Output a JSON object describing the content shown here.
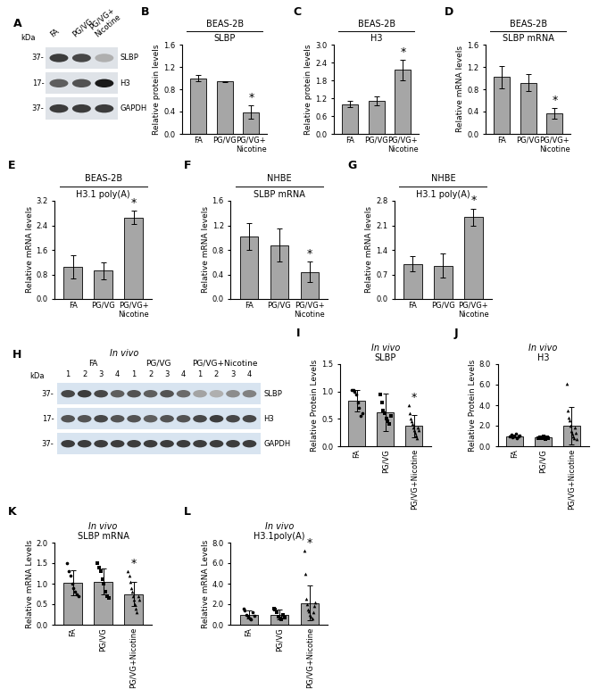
{
  "blots": [
    {
      "panel": "A",
      "kda_label": "kDa",
      "lanes": [
        "FA",
        "PG/VG",
        "PG/VG+\nNicotine"
      ],
      "rows": [
        {
          "name": "SLBP",
          "mw_label": "37-",
          "intensity": [
            0.85,
            0.8,
            0.35
          ]
        },
        {
          "name": "H3",
          "mw_label": "17-",
          "intensity": [
            0.7,
            0.75,
            1.0
          ]
        },
        {
          "name": "GAPDH",
          "mw_label": "37-",
          "intensity": [
            0.85,
            0.85,
            0.85
          ]
        }
      ]
    },
    {
      "panel": "H",
      "title": "In vivo",
      "kda_label": "kDa",
      "groups": [
        "FA",
        "PG/VG",
        "PG/VG+Nicotine"
      ],
      "lane_labels": [
        "1",
        "2",
        "3",
        "4"
      ],
      "rows": [
        {
          "name": "SLBP",
          "mw_label": "37-",
          "intensity": [
            0.8,
            0.85,
            0.8,
            0.7,
            0.75,
            0.7,
            0.75,
            0.65,
            0.4,
            0.35,
            0.5,
            0.55
          ]
        },
        {
          "name": "H3",
          "mw_label": "17-",
          "intensity": [
            0.75,
            0.75,
            0.8,
            0.75,
            0.75,
            0.7,
            0.75,
            0.75,
            0.8,
            0.85,
            0.8,
            0.8
          ]
        },
        {
          "name": "GAPDH",
          "mw_label": "37-",
          "intensity": [
            0.85,
            0.85,
            0.85,
            0.85,
            0.85,
            0.85,
            0.85,
            0.85,
            0.85,
            0.85,
            0.85,
            0.85
          ]
        }
      ]
    }
  ],
  "chart_data": [
    {
      "panel": "B",
      "type": "bar",
      "title": "BEAS-2B",
      "subtitle": "SLBP",
      "y_label": "Relative protein levels",
      "categories": [
        "FA",
        "PG/VG",
        "PG/VG+\nNicotine"
      ],
      "values": [
        1.0,
        0.94,
        0.39
      ],
      "errors": [
        0.05,
        0.01,
        0.12
      ],
      "color": "#a6a6a6",
      "ylim": [
        0.0,
        1.6
      ],
      "yticks": [
        0.0,
        0.4,
        0.8,
        1.2,
        1.6
      ],
      "annotations": [
        {
          "category": "PG/VG+\nNicotine",
          "text": "*"
        }
      ]
    },
    {
      "panel": "C",
      "type": "bar",
      "title": "BEAS-2B",
      "subtitle": "H3",
      "y_label": "Relative protein levels",
      "categories": [
        "FA",
        "PG/VG",
        "PG/VG+\nNicotine"
      ],
      "values": [
        1.0,
        1.1,
        2.15
      ],
      "errors": [
        0.1,
        0.15,
        0.35
      ],
      "color": "#a6a6a6",
      "ylim": [
        0.0,
        3.0
      ],
      "yticks": [
        0.0,
        0.6,
        1.2,
        1.8,
        2.4,
        3.0
      ],
      "annotations": [
        {
          "category": "PG/VG+\nNicotine",
          "text": "*"
        }
      ]
    },
    {
      "panel": "D",
      "type": "bar",
      "title": "BEAS-2B",
      "subtitle": "SLBP mRNA",
      "y_label": "Relative mRNA levels",
      "categories": [
        "FA",
        "PG/VG",
        "PG/VG+\nNicotine"
      ],
      "values": [
        1.02,
        0.92,
        0.37
      ],
      "errors": [
        0.2,
        0.15,
        0.1
      ],
      "color": "#a6a6a6",
      "ylim": [
        0.0,
        1.6
      ],
      "yticks": [
        0.0,
        0.4,
        0.8,
        1.2,
        1.6
      ],
      "annotations": [
        {
          "category": "PG/VG+\nNicotine",
          "text": "*"
        }
      ]
    },
    {
      "panel": "E",
      "type": "bar",
      "title": "BEAS-2B",
      "subtitle": "H3.1 poly(A)",
      "y_label": "Relative mRNA levels",
      "categories": [
        "FA",
        "PG/VG",
        "PG/VG+\nNicotine"
      ],
      "values": [
        1.05,
        0.92,
        2.65
      ],
      "errors": [
        0.38,
        0.28,
        0.22
      ],
      "color": "#a6a6a6",
      "ylim": [
        0.0,
        3.2
      ],
      "yticks": [
        0.0,
        0.8,
        1.6,
        2.4,
        3.2
      ],
      "annotations": [
        {
          "category": "PG/VG+\nNicotine",
          "text": "*"
        }
      ]
    },
    {
      "panel": "F",
      "type": "bar",
      "title": "NHBE",
      "subtitle": "SLBP mRNA",
      "y_label": "Relative mRNA levels",
      "categories": [
        "FA",
        "PG/VG",
        "PG/VG+\nNicotine"
      ],
      "values": [
        1.02,
        0.88,
        0.44
      ],
      "errors": [
        0.22,
        0.27,
        0.17
      ],
      "color": "#a6a6a6",
      "ylim": [
        0.0,
        1.6
      ],
      "yticks": [
        0.0,
        0.4,
        0.8,
        1.2,
        1.6
      ],
      "annotations": [
        {
          "category": "PG/VG+\nNicotine",
          "text": "*"
        }
      ]
    },
    {
      "panel": "G",
      "type": "bar",
      "title": "NHBE",
      "subtitle": "H3.1 poly(A)",
      "y_label": "Relative mRNA levels",
      "categories": [
        "FA",
        "PG/VG",
        "PG/VG+\nNicotine"
      ],
      "values": [
        1.0,
        0.95,
        2.33
      ],
      "errors": [
        0.22,
        0.35,
        0.25
      ],
      "color": "#a6a6a6",
      "ylim": [
        0.0,
        2.8
      ],
      "yticks": [
        0.0,
        0.7,
        1.4,
        2.1,
        2.8
      ],
      "annotations": [
        {
          "category": "PG/VG+\nNicotine",
          "text": "*"
        }
      ]
    },
    {
      "panel": "I",
      "type": "bar",
      "title": "In vivo",
      "subtitle": "SLBP",
      "y_label": "Relative Protein Levels",
      "categories": [
        "FA",
        "PG/VG",
        "PG/VG+Nicotine"
      ],
      "values": [
        0.83,
        0.62,
        0.37
      ],
      "errors": [
        0.2,
        0.35,
        0.2
      ],
      "points": [
        [
          1.03,
          1.03,
          1.0,
          0.95,
          0.8,
          0.7,
          0.55,
          0.6
        ],
        [
          0.95,
          0.8,
          0.65,
          0.6,
          0.5,
          0.45,
          0.4,
          0.55
        ],
        [
          0.75,
          0.6,
          0.5,
          0.45,
          0.4,
          0.35,
          0.3,
          0.25,
          0.2,
          0.15,
          0.35,
          0.3
        ]
      ],
      "marker": [
        "circle",
        "square",
        "triangle"
      ],
      "color": "#a6a6a6",
      "ylim": [
        0.0,
        1.5
      ],
      "yticks": [
        0.0,
        0.5,
        1.0,
        1.5
      ],
      "annotations": [
        {
          "category": "PG/VG+Nicotine",
          "text": "*"
        }
      ]
    },
    {
      "panel": "J",
      "type": "bar",
      "title": "In vivo",
      "subtitle": "H3",
      "y_label": "Relative Protein Levels",
      "categories": [
        "FA",
        "PG/VG",
        "PG/VG+Nicotine"
      ],
      "values": [
        1.0,
        0.85,
        2.0
      ],
      "errors": [
        0.15,
        0.12,
        1.8
      ],
      "points": [
        [
          1.0,
          1.1,
          0.9,
          1.0,
          1.2,
          0.8,
          0.95,
          1.05
        ],
        [
          0.8,
          0.9,
          0.75,
          0.85,
          0.95,
          0.7,
          0.9,
          0.8
        ],
        [
          6.1,
          3.5,
          2.8,
          2.5,
          2.0,
          1.5,
          1.2,
          1.0,
          0.8,
          1.8,
          1.3,
          0.7
        ]
      ],
      "marker": [
        "circle",
        "square",
        "triangle"
      ],
      "color": "#a6a6a6",
      "ylim": [
        0.0,
        8.0
      ],
      "yticks": [
        0.0,
        2.0,
        4.0,
        6.0,
        8.0
      ]
    },
    {
      "panel": "K",
      "type": "bar",
      "title": "In vivo",
      "subtitle": "SLBP mRNA",
      "y_label": "Relative mRNA Levels",
      "categories": [
        "FA",
        "PG/VG",
        "PG/VG+Nicotine"
      ],
      "values": [
        1.02,
        1.05,
        0.75
      ],
      "errors": [
        0.3,
        0.32,
        0.3
      ],
      "points": [
        [
          1.5,
          1.3,
          1.2,
          1.0,
          0.9,
          0.8,
          0.75,
          0.7
        ],
        [
          1.5,
          1.4,
          1.3,
          1.1,
          1.0,
          0.8,
          0.7,
          0.65
        ],
        [
          1.3,
          1.2,
          1.05,
          0.9,
          0.8,
          0.7,
          0.6,
          0.5,
          0.4,
          0.3,
          0.7,
          0.6
        ]
      ],
      "marker": [
        "circle",
        "square",
        "triangle"
      ],
      "color": "#a6a6a6",
      "ylim": [
        0.0,
        2.0
      ],
      "yticks": [
        0.0,
        0.5,
        1.0,
        1.5,
        2.0
      ],
      "annotations": [
        {
          "category": "PG/VG+Nicotine",
          "text": "*"
        }
      ]
    },
    {
      "panel": "L",
      "type": "bar",
      "title": "In vivo",
      "subtitle": "H3.1poly(A)",
      "y_label": "Relative mRNA Levels",
      "categories": [
        "FA",
        "PG/VG",
        "PG/VG+Nicotine"
      ],
      "values": [
        1.0,
        1.0,
        2.1
      ],
      "errors": [
        0.4,
        0.45,
        1.7
      ],
      "points": [
        [
          1.6,
          1.4,
          1.0,
          0.8,
          0.6,
          0.5,
          1.2,
          0.9
        ],
        [
          1.6,
          1.5,
          1.2,
          0.8,
          0.6,
          0.5,
          1.0,
          0.7
        ],
        [
          7.2,
          5.0,
          2.5,
          2.0,
          1.5,
          1.3,
          1.0,
          0.8,
          0.6,
          1.2,
          1.8,
          2.2
        ]
      ],
      "marker": [
        "circle",
        "square",
        "triangle"
      ],
      "color": "#a6a6a6",
      "ylim": [
        0.0,
        8.0
      ],
      "yticks": [
        0.0,
        2.0,
        4.0,
        6.0,
        8.0
      ],
      "annotations": [
        {
          "category": "PG/VG+Nicotine",
          "text": "*"
        }
      ]
    }
  ]
}
